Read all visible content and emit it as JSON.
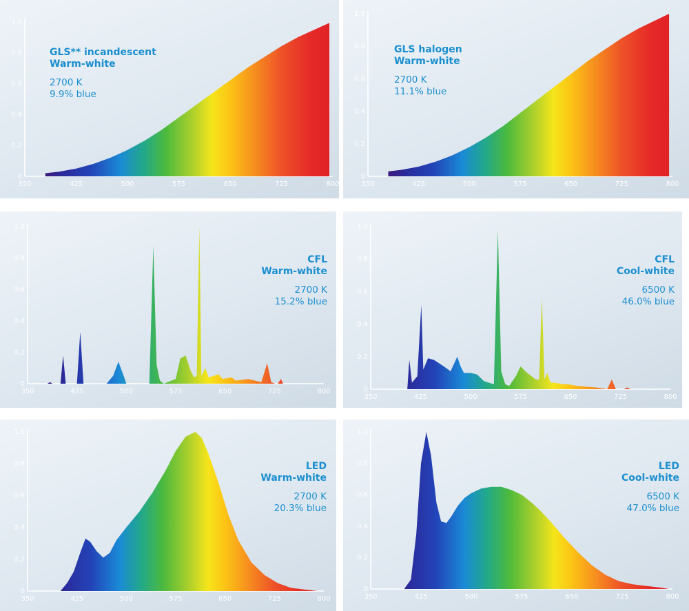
{
  "chart_data": [
    {
      "type": "area",
      "title": "GLS** incandescent",
      "subtitle": "Warm-white",
      "annotations": [
        "2700 K",
        "9.9% blue"
      ],
      "xticks": [
        "350",
        "425",
        "500",
        "575",
        "650",
        "725",
        "800"
      ],
      "yticks": [
        "0",
        "0.2",
        "0.4",
        "0.6",
        "0.8",
        "1.0"
      ],
      "xlim": [
        350,
        800
      ],
      "ylim": [
        0,
        1.0
      ],
      "x": [
        380,
        400,
        425,
        450,
        475,
        500,
        525,
        550,
        575,
        600,
        625,
        650,
        675,
        700,
        725,
        750,
        775,
        795
      ],
      "y": [
        0.02,
        0.03,
        0.05,
        0.08,
        0.12,
        0.17,
        0.23,
        0.3,
        0.38,
        0.46,
        0.54,
        0.62,
        0.7,
        0.77,
        0.84,
        0.9,
        0.95,
        0.99
      ]
    },
    {
      "type": "area",
      "title": "GLS halogen",
      "subtitle": "Warm-white",
      "annotations": [
        "2700 K",
        "11.1% blue"
      ],
      "xticks": [
        "350",
        "425",
        "500",
        "575",
        "650",
        "725",
        "800"
      ],
      "yticks": [
        "0",
        "0.2",
        "0.4",
        "0.6",
        "0.8",
        "1.0"
      ],
      "xlim": [
        350,
        800
      ],
      "ylim": [
        0,
        1.0
      ],
      "x": [
        380,
        400,
        425,
        450,
        475,
        500,
        525,
        550,
        575,
        600,
        625,
        650,
        675,
        700,
        725,
        750,
        775,
        795
      ],
      "y": [
        0.03,
        0.04,
        0.06,
        0.09,
        0.13,
        0.18,
        0.24,
        0.31,
        0.39,
        0.47,
        0.55,
        0.63,
        0.71,
        0.78,
        0.85,
        0.91,
        0.96,
        1.0
      ]
    },
    {
      "type": "area",
      "title": "CFL",
      "subtitle": "Warm-white",
      "annotations": [
        "2700 K",
        "15.2% blue"
      ],
      "xticks": [
        "350",
        "425",
        "500",
        "575",
        "650",
        "725",
        "800"
      ],
      "yticks": [
        "0",
        "0.2",
        "0.4",
        "0.6",
        "0.8",
        "1.0"
      ],
      "xlim": [
        350,
        800
      ],
      "ylim": [
        0,
        1.0
      ],
      "x": [
        380,
        384,
        388,
        400,
        404,
        408,
        425,
        430,
        435,
        470,
        480,
        488,
        496,
        500,
        535,
        541,
        546,
        551,
        557,
        575,
        582,
        590,
        598,
        603,
        607,
        611,
        614,
        620,
        625,
        640,
        646,
        660,
        666,
        685,
        705,
        714,
        720,
        726,
        730,
        735,
        738,
        770
      ],
      "y": [
        0.0,
        0.01,
        0.0,
        0.0,
        0.18,
        0.0,
        0.0,
        0.33,
        0.0,
        0.0,
        0.05,
        0.14,
        0.05,
        0.0,
        0.0,
        0.88,
        0.12,
        0.02,
        0.0,
        0.03,
        0.16,
        0.18,
        0.08,
        0.04,
        0.05,
        1.0,
        0.05,
        0.1,
        0.04,
        0.06,
        0.03,
        0.04,
        0.02,
        0.03,
        0.01,
        0.13,
        0.01,
        0.0,
        0.0,
        0.03,
        0.0,
        0.0
      ]
    },
    {
      "type": "area",
      "title": "CFL",
      "subtitle": "Cool-white",
      "annotations": [
        "6500 K",
        "46.0% blue"
      ],
      "xticks": [
        "350",
        "425",
        "500",
        "575",
        "650",
        "725",
        "800"
      ],
      "yticks": [
        "0",
        "0.2",
        "0.4",
        "0.6",
        "0.8",
        "1.0"
      ],
      "xlim": [
        350,
        800
      ],
      "ylim": [
        0,
        1.0
      ],
      "x": [
        405,
        408,
        412,
        420,
        426,
        429,
        436,
        445,
        460,
        470,
        480,
        485,
        490,
        500,
        510,
        520,
        535,
        541,
        546,
        552,
        558,
        568,
        575,
        585,
        598,
        603,
        607,
        611,
        615,
        620,
        625,
        640,
        646,
        660,
        690,
        705,
        712,
        718,
        730,
        735,
        740
      ],
      "y": [
        0.0,
        0.18,
        0.04,
        0.08,
        0.52,
        0.12,
        0.19,
        0.18,
        0.14,
        0.11,
        0.2,
        0.14,
        0.1,
        0.1,
        0.09,
        0.05,
        0.03,
        0.98,
        0.11,
        0.03,
        0.02,
        0.08,
        0.14,
        0.1,
        0.06,
        0.06,
        0.56,
        0.06,
        0.1,
        0.04,
        0.04,
        0.03,
        0.03,
        0.02,
        0.01,
        0.0,
        0.06,
        0.0,
        0.0,
        0.01,
        0.0
      ]
    },
    {
      "type": "area",
      "title": "LED",
      "subtitle": "Warm-white",
      "annotations": [
        "2700 K",
        "20.3% blue"
      ],
      "xticks": [
        "350",
        "425",
        "500",
        "575",
        "650",
        "725",
        "800"
      ],
      "yticks": [
        "0",
        "0.2",
        "0.4",
        "0.6",
        "0.8",
        "1.0"
      ],
      "xlim": [
        350,
        800
      ],
      "ylim": [
        0,
        1.0
      ],
      "x": [
        400,
        410,
        420,
        430,
        438,
        445,
        455,
        465,
        475,
        485,
        500,
        520,
        540,
        560,
        575,
        590,
        605,
        615,
        625,
        640,
        655,
        670,
        690,
        710,
        730,
        750,
        770,
        790
      ],
      "y": [
        0.0,
        0.05,
        0.12,
        0.24,
        0.33,
        0.31,
        0.25,
        0.21,
        0.24,
        0.32,
        0.4,
        0.5,
        0.62,
        0.76,
        0.88,
        0.97,
        1.0,
        0.96,
        0.86,
        0.68,
        0.48,
        0.32,
        0.18,
        0.1,
        0.05,
        0.02,
        0.01,
        0.0
      ]
    },
    {
      "type": "area",
      "title": "LED",
      "subtitle": "Cool-white",
      "annotations": [
        "6500 K",
        "47.0% blue"
      ],
      "xticks": [
        "350",
        "425",
        "500",
        "575",
        "650",
        "725",
        "800"
      ],
      "yticks": [
        "0",
        "0.2",
        "0.4",
        "0.6",
        "0.8",
        "1.0"
      ],
      "xlim": [
        350,
        800
      ],
      "ylim": [
        0,
        1.0
      ],
      "x": [
        400,
        410,
        418,
        425,
        433,
        440,
        448,
        455,
        463,
        470,
        480,
        490,
        500,
        515,
        530,
        545,
        560,
        575,
        590,
        605,
        620,
        640,
        660,
        680,
        700,
        720,
        740,
        760,
        780,
        795
      ],
      "y": [
        0.0,
        0.06,
        0.35,
        0.8,
        1.0,
        0.85,
        0.55,
        0.43,
        0.42,
        0.46,
        0.53,
        0.58,
        0.61,
        0.64,
        0.65,
        0.65,
        0.63,
        0.6,
        0.55,
        0.49,
        0.42,
        0.32,
        0.23,
        0.15,
        0.09,
        0.05,
        0.03,
        0.02,
        0.01,
        0.0
      ]
    }
  ]
}
